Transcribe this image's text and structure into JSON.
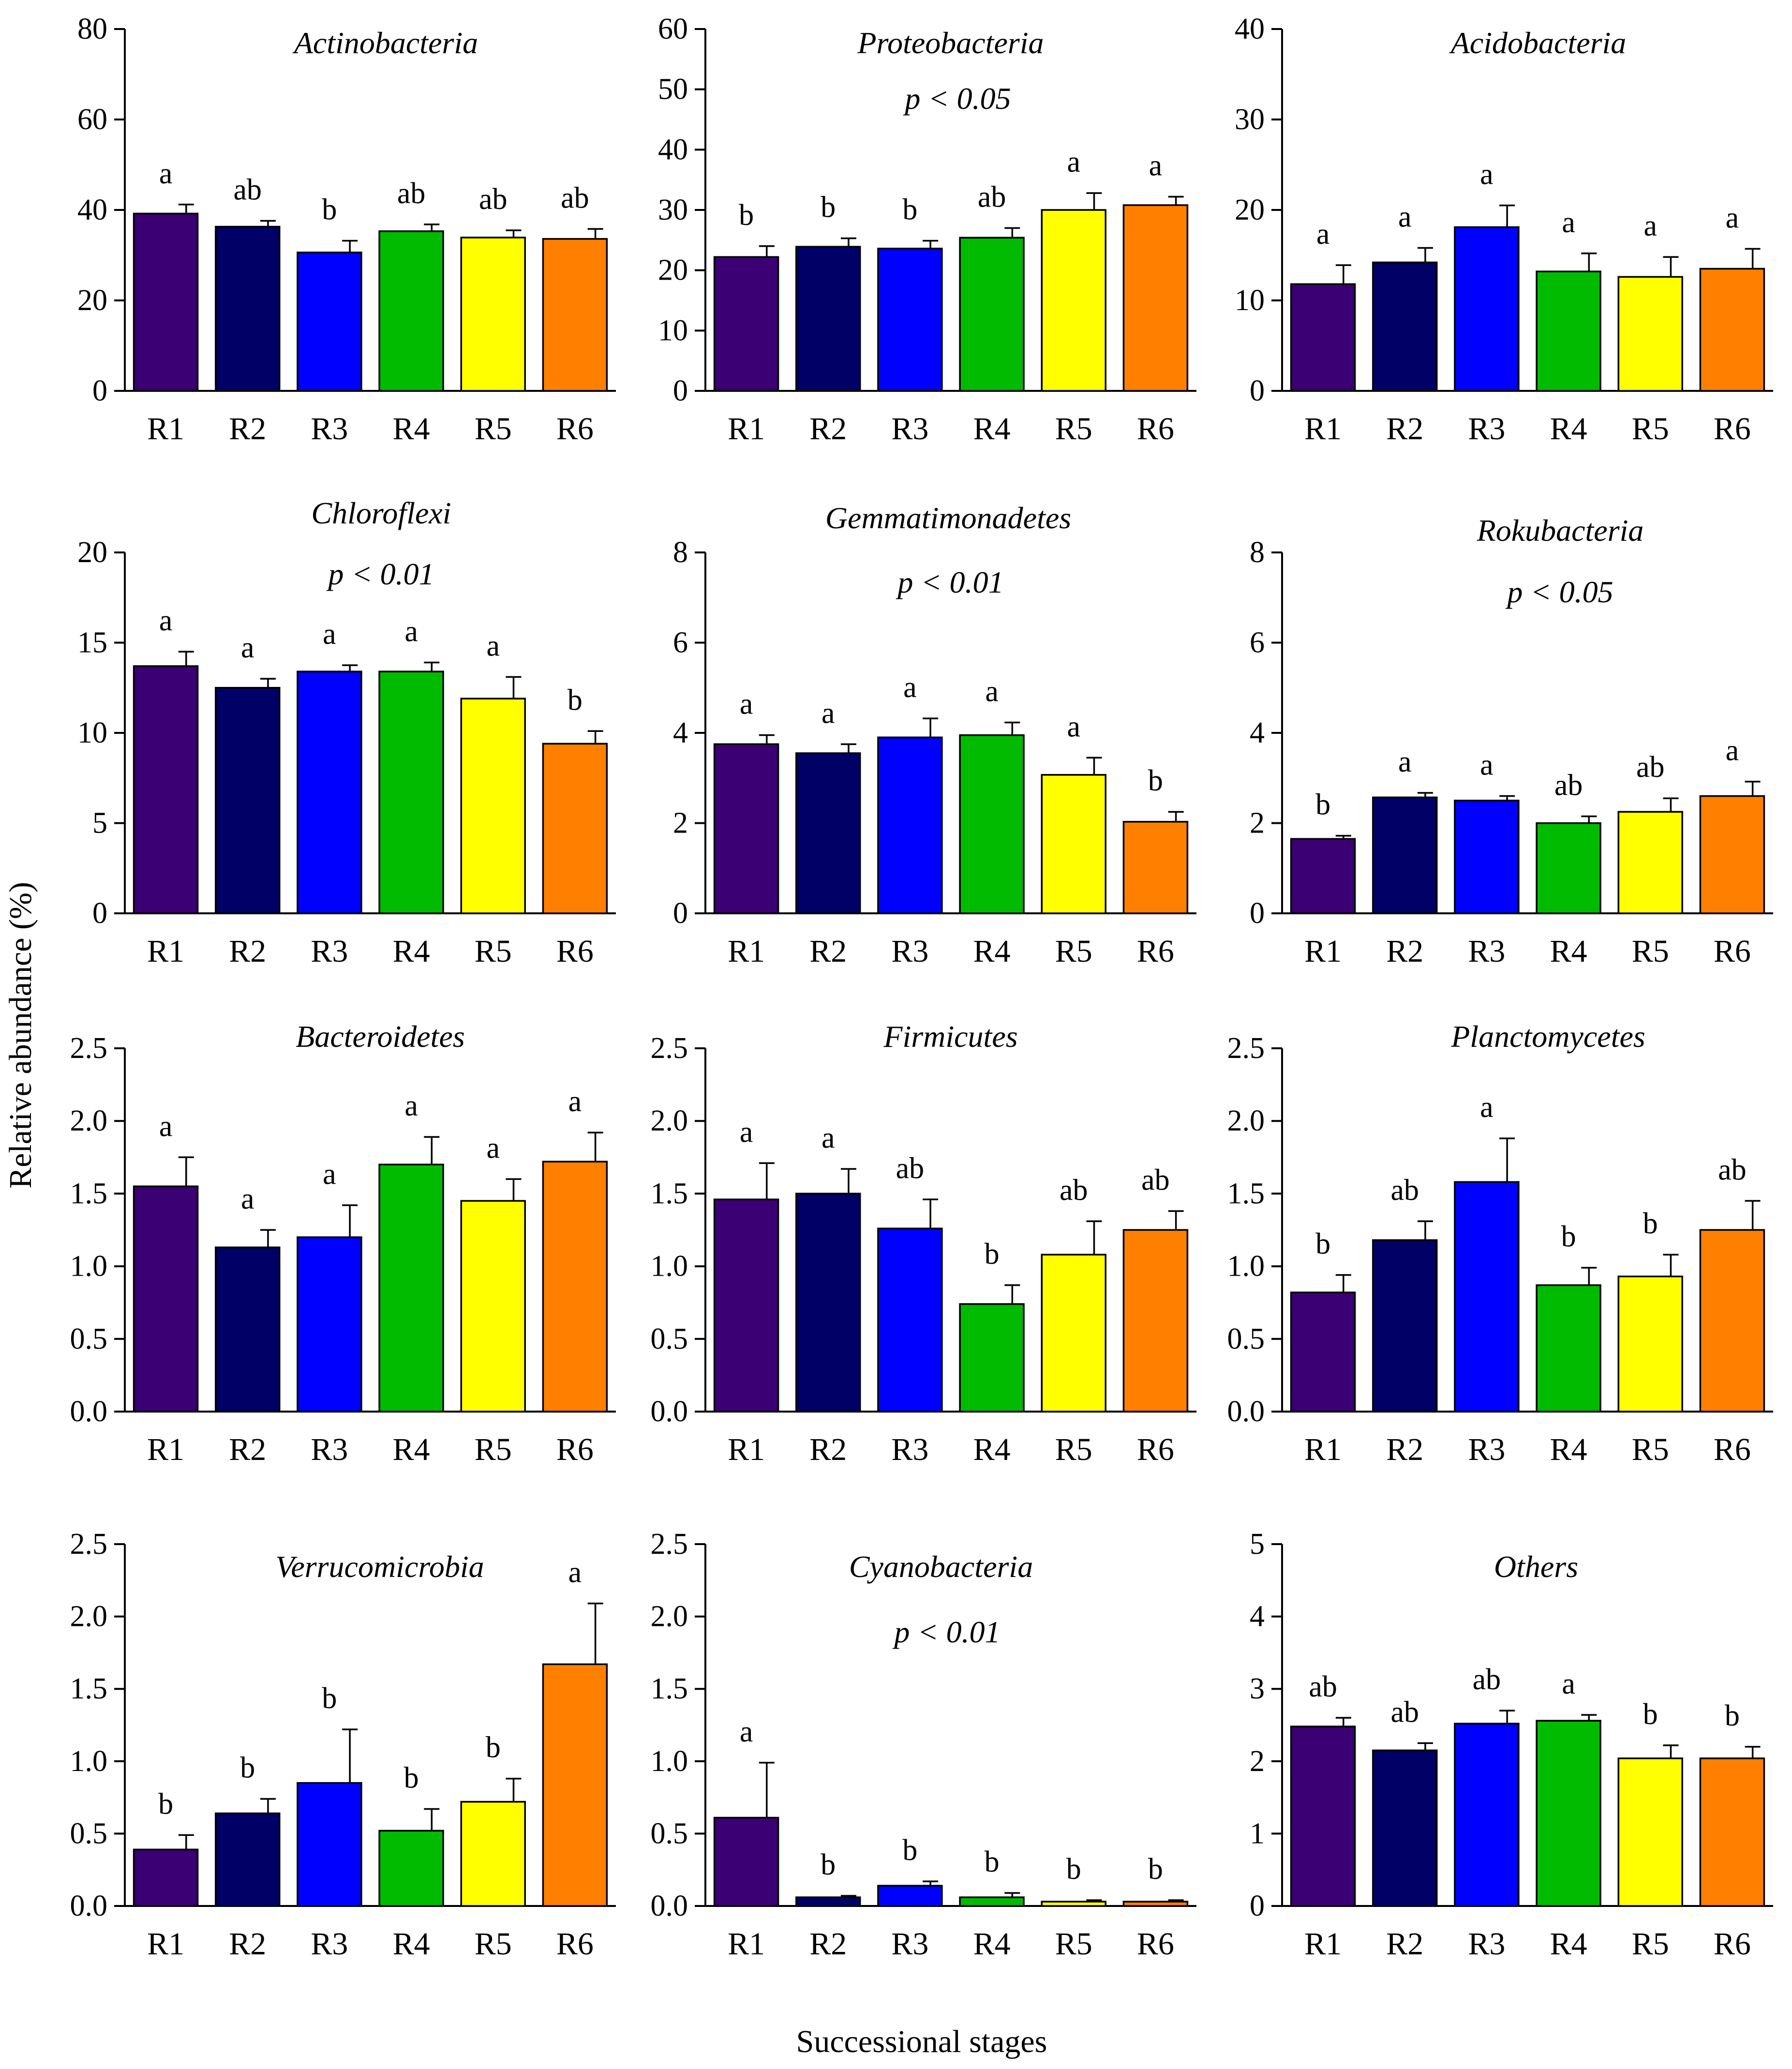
{
  "ylabel": "Relative abundance (%)",
  "xlabel": "Successional stages",
  "categories": [
    "R1",
    "R2",
    "R3",
    "R4",
    "R5",
    "R6"
  ],
  "colors": [
    "#3b0073",
    "#000066",
    "#0000ff",
    "#00bb00",
    "#ffff00",
    "#ff7f00"
  ],
  "chart_data": [
    {
      "type": "bar",
      "title": "Actinobacteria",
      "pvalue": "",
      "ylim": [
        0,
        80
      ],
      "yticks": [
        "0",
        "20",
        "40",
        "60",
        "80"
      ],
      "categories": [
        "R1",
        "R2",
        "R3",
        "R4",
        "R5",
        "R6"
      ],
      "values": [
        39.2,
        36.3,
        30.6,
        35.3,
        33.9,
        33.6
      ],
      "errors": [
        2.0,
        1.3,
        2.6,
        1.5,
        1.6,
        2.2
      ],
      "letters": [
        "a",
        "ab",
        "b",
        "ab",
        "ab",
        "ab"
      ]
    },
    {
      "type": "bar",
      "title": "Proteobacteria",
      "pvalue": "p < 0.05",
      "ylim": [
        0,
        60
      ],
      "yticks": [
        "0",
        "10",
        "20",
        "30",
        "40",
        "50",
        "60"
      ],
      "categories": [
        "R1",
        "R2",
        "R3",
        "R4",
        "R5",
        "R6"
      ],
      "values": [
        22.2,
        23.9,
        23.6,
        25.4,
        30.0,
        30.8
      ],
      "errors": [
        1.8,
        1.4,
        1.3,
        1.6,
        2.8,
        1.4
      ],
      "letters": [
        "b",
        "b",
        "b",
        "ab",
        "a",
        "a"
      ]
    },
    {
      "type": "bar",
      "title": "Acidobacteria",
      "pvalue": "",
      "ylim": [
        0,
        40
      ],
      "yticks": [
        "0",
        "10",
        "20",
        "30",
        "40"
      ],
      "categories": [
        "R1",
        "R2",
        "R3",
        "R4",
        "R5",
        "R6"
      ],
      "values": [
        11.8,
        14.2,
        18.1,
        13.2,
        12.6,
        13.5
      ],
      "errors": [
        2.1,
        1.6,
        2.4,
        2.0,
        2.2,
        2.2
      ],
      "letters": [
        "a",
        "a",
        "a",
        "a",
        "a",
        "a"
      ]
    },
    {
      "type": "bar",
      "title": "Chloroflexi",
      "pvalue": "p < 0.01",
      "ylim": [
        0,
        20
      ],
      "yticks": [
        "0",
        "5",
        "10",
        "15",
        "20"
      ],
      "categories": [
        "R1",
        "R2",
        "R3",
        "R4",
        "R5",
        "R6"
      ],
      "values": [
        13.7,
        12.5,
        13.4,
        13.4,
        11.9,
        9.4
      ],
      "errors": [
        0.8,
        0.5,
        0.35,
        0.5,
        1.2,
        0.7
      ],
      "letters": [
        "a",
        "a",
        "a",
        "a",
        "a",
        "b"
      ]
    },
    {
      "type": "bar",
      "title": "Gemmatimonadetes",
      "pvalue": "p < 0.01",
      "ylim": [
        0,
        8
      ],
      "yticks": [
        "0",
        "2",
        "4",
        "6",
        "8"
      ],
      "categories": [
        "R1",
        "R2",
        "R3",
        "R4",
        "R5",
        "R6"
      ],
      "values": [
        3.75,
        3.55,
        3.9,
        3.95,
        3.07,
        2.03
      ],
      "errors": [
        0.2,
        0.2,
        0.42,
        0.28,
        0.38,
        0.22
      ],
      "letters": [
        "a",
        "a",
        "a",
        "a",
        "a",
        "b"
      ]
    },
    {
      "type": "bar",
      "title": "Rokubacteria",
      "pvalue": "p < 0.05",
      "ylim": [
        0,
        8
      ],
      "yticks": [
        "0",
        "2",
        "4",
        "6",
        "8"
      ],
      "categories": [
        "R1",
        "R2",
        "R3",
        "R4",
        "R5",
        "R6"
      ],
      "values": [
        1.65,
        2.57,
        2.5,
        2.0,
        2.25,
        2.6
      ],
      "errors": [
        0.07,
        0.1,
        0.1,
        0.15,
        0.3,
        0.32
      ],
      "letters": [
        "b",
        "a",
        "a",
        "ab",
        "ab",
        "a"
      ]
    },
    {
      "type": "bar",
      "title": "Bacteroidetes",
      "pvalue": "",
      "ylim": [
        0,
        2.5
      ],
      "yticks": [
        "0.0",
        "0.5",
        "1.0",
        "1.5",
        "2.0",
        "2.5"
      ],
      "categories": [
        "R1",
        "R2",
        "R3",
        "R4",
        "R5",
        "R6"
      ],
      "values": [
        1.55,
        1.13,
        1.2,
        1.7,
        1.45,
        1.72
      ],
      "errors": [
        0.2,
        0.12,
        0.22,
        0.19,
        0.15,
        0.2
      ],
      "letters": [
        "a",
        "a",
        "a",
        "a",
        "a",
        "a"
      ]
    },
    {
      "type": "bar",
      "title": "Firmicutes",
      "pvalue": "",
      "ylim": [
        0,
        2.5
      ],
      "yticks": [
        "0.0",
        "0.5",
        "1.0",
        "1.5",
        "2.0",
        "2.5"
      ],
      "categories": [
        "R1",
        "R2",
        "R3",
        "R4",
        "R5",
        "R6"
      ],
      "values": [
        1.46,
        1.5,
        1.26,
        0.74,
        1.08,
        1.25
      ],
      "errors": [
        0.25,
        0.17,
        0.2,
        0.13,
        0.23,
        0.13
      ],
      "letters": [
        "a",
        "a",
        "ab",
        "b",
        "ab",
        "ab"
      ]
    },
    {
      "type": "bar",
      "title": "Planctomycetes",
      "pvalue": "",
      "ylim": [
        0,
        2.5
      ],
      "yticks": [
        "0.0",
        "0.5",
        "1.0",
        "1.5",
        "2.0",
        "2.5"
      ],
      "categories": [
        "R1",
        "R2",
        "R3",
        "R4",
        "R5",
        "R6"
      ],
      "values": [
        0.82,
        1.18,
        1.58,
        0.87,
        0.93,
        1.25
      ],
      "errors": [
        0.12,
        0.13,
        0.3,
        0.12,
        0.15,
        0.2
      ],
      "letters": [
        "b",
        "ab",
        "a",
        "b",
        "b",
        "ab"
      ]
    },
    {
      "type": "bar",
      "title": "Verrucomicrobia",
      "pvalue": "",
      "ylim": [
        0,
        2.5
      ],
      "yticks": [
        "0.0",
        "0.5",
        "1.0",
        "1.5",
        "2.0",
        "2.5"
      ],
      "categories": [
        "R1",
        "R2",
        "R3",
        "R4",
        "R5",
        "R6"
      ],
      "values": [
        0.39,
        0.64,
        0.85,
        0.52,
        0.72,
        1.67
      ],
      "errors": [
        0.1,
        0.1,
        0.37,
        0.15,
        0.16,
        0.42
      ],
      "letters": [
        "b",
        "b",
        "b",
        "b",
        "b",
        "a"
      ]
    },
    {
      "type": "bar",
      "title": "Cyanobacteria",
      "pvalue": "p < 0.01",
      "ylim": [
        0,
        2.5
      ],
      "yticks": [
        "0.0",
        "0.5",
        "1.0",
        "1.5",
        "2.0",
        "2.5"
      ],
      "categories": [
        "R1",
        "R2",
        "R3",
        "R4",
        "R5",
        "R6"
      ],
      "values": [
        0.61,
        0.06,
        0.14,
        0.06,
        0.03,
        0.03
      ],
      "errors": [
        0.38,
        0.01,
        0.03,
        0.03,
        0.01,
        0.01
      ],
      "letters": [
        "a",
        "b",
        "b",
        "b",
        "b",
        "b"
      ]
    },
    {
      "type": "bar",
      "title": "Others",
      "pvalue": "",
      "ylim": [
        0,
        5
      ],
      "yticks": [
        "0",
        "1",
        "2",
        "3",
        "4",
        "5"
      ],
      "categories": [
        "R1",
        "R2",
        "R3",
        "R4",
        "R5",
        "R6"
      ],
      "values": [
        2.48,
        2.15,
        2.52,
        2.56,
        2.04,
        2.04
      ],
      "errors": [
        0.12,
        0.1,
        0.18,
        0.08,
        0.18,
        0.16
      ],
      "letters": [
        "ab",
        "ab",
        "ab",
        "a",
        "b",
        "b"
      ]
    }
  ]
}
